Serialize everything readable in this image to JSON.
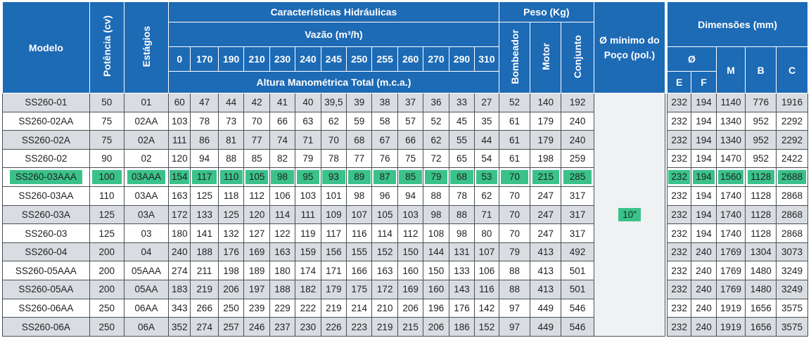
{
  "header": {
    "modelo": "Modelo",
    "potencia": "Potência (cv)",
    "estagios": "Estágios",
    "caracteristicas": "Características Hidráulicas",
    "vazao": "Vazão (m³/h)",
    "altura": "Altura Manométrica Total (m.c.a.)",
    "peso": "Peso (Kg)",
    "bombeador": "Bombeador",
    "motor": "Motor",
    "conjunto": "Conjunto",
    "diametro_poco": "Ø mínimo do Poço (pol.)",
    "dimensoes": "Dimensões (mm)",
    "dia": "Ø",
    "e": "E",
    "f": "F",
    "m": "M",
    "b": "B",
    "c": "C"
  },
  "flows": [
    "0",
    "170",
    "190",
    "210",
    "230",
    "240",
    "245",
    "250",
    "255",
    "260",
    "270",
    "290",
    "310"
  ],
  "poco_min": "10”",
  "highlight_row": 4,
  "rows": [
    {
      "modelo": "SS260-01",
      "potencia": "50",
      "estagios": "01",
      "heads": [
        "60",
        "47",
        "44",
        "42",
        "41",
        "40",
        "39,5",
        "39",
        "38",
        "37",
        "36",
        "33",
        "27"
      ],
      "bombeador": "52",
      "motor": "140",
      "conjunto": "192",
      "e": "232",
      "f": "194",
      "m": "1140",
      "b": "776",
      "c": "1916"
    },
    {
      "modelo": "SS260-02AA",
      "potencia": "75",
      "estagios": "02AA",
      "heads": [
        "103",
        "78",
        "73",
        "70",
        "66",
        "63",
        "62",
        "59",
        "58",
        "57",
        "52",
        "45",
        "35"
      ],
      "bombeador": "61",
      "motor": "179",
      "conjunto": "240",
      "e": "232",
      "f": "194",
      "m": "1340",
      "b": "952",
      "c": "2292"
    },
    {
      "modelo": "SS260-02A",
      "potencia": "75",
      "estagios": "02A",
      "heads": [
        "111",
        "86",
        "81",
        "77",
        "74",
        "71",
        "70",
        "68",
        "67",
        "66",
        "62",
        "55",
        "44"
      ],
      "bombeador": "61",
      "motor": "179",
      "conjunto": "240",
      "e": "232",
      "f": "194",
      "m": "1340",
      "b": "952",
      "c": "2292"
    },
    {
      "modelo": "SS260-02",
      "potencia": "90",
      "estagios": "02",
      "heads": [
        "120",
        "94",
        "88",
        "85",
        "82",
        "79",
        "78",
        "77",
        "76",
        "75",
        "72",
        "65",
        "54"
      ],
      "bombeador": "61",
      "motor": "198",
      "conjunto": "259",
      "e": "232",
      "f": "194",
      "m": "1470",
      "b": "952",
      "c": "2422"
    },
    {
      "modelo": "SS260-03AAA",
      "potencia": "100",
      "estagios": "03AAA",
      "heads": [
        "154",
        "117",
        "110",
        "105",
        "98",
        "95",
        "93",
        "89",
        "87",
        "85",
        "79",
        "68",
        "53"
      ],
      "bombeador": "70",
      "motor": "215",
      "conjunto": "285",
      "e": "232",
      "f": "194",
      "m": "1560",
      "b": "1128",
      "c": "2688"
    },
    {
      "modelo": "SS260-03AA",
      "potencia": "110",
      "estagios": "03AA",
      "heads": [
        "163",
        "125",
        "118",
        "112",
        "106",
        "103",
        "101",
        "98",
        "96",
        "94",
        "88",
        "78",
        "62"
      ],
      "bombeador": "70",
      "motor": "247",
      "conjunto": "317",
      "e": "232",
      "f": "194",
      "m": "1740",
      "b": "1128",
      "c": "2868"
    },
    {
      "modelo": "SS260-03A",
      "potencia": "125",
      "estagios": "03A",
      "heads": [
        "172",
        "133",
        "125",
        "120",
        "114",
        "111",
        "109",
        "107",
        "105",
        "103",
        "98",
        "88",
        "71"
      ],
      "bombeador": "70",
      "motor": "247",
      "conjunto": "317",
      "e": "232",
      "f": "194",
      "m": "1740",
      "b": "1128",
      "c": "2868"
    },
    {
      "modelo": "SS260-03",
      "potencia": "125",
      "estagios": "03",
      "heads": [
        "180",
        "141",
        "132",
        "127",
        "122",
        "119",
        "117",
        "116",
        "114",
        "112",
        "108",
        "98",
        "80"
      ],
      "bombeador": "70",
      "motor": "247",
      "conjunto": "317",
      "e": "232",
      "f": "194",
      "m": "1740",
      "b": "1128",
      "c": "2868"
    },
    {
      "modelo": "SS260-04",
      "potencia": "200",
      "estagios": "04",
      "heads": [
        "240",
        "188",
        "176",
        "169",
        "163",
        "159",
        "156",
        "155",
        "152",
        "150",
        "144",
        "131",
        "107"
      ],
      "bombeador": "79",
      "motor": "413",
      "conjunto": "492",
      "e": "232",
      "f": "240",
      "m": "1769",
      "b": "1304",
      "c": "3073"
    },
    {
      "modelo": "SS260-05AAA",
      "potencia": "200",
      "estagios": "05AAA",
      "heads": [
        "274",
        "211",
        "198",
        "189",
        "180",
        "174",
        "171",
        "166",
        "163",
        "160",
        "150",
        "133",
        "106"
      ],
      "bombeador": "88",
      "motor": "413",
      "conjunto": "501",
      "e": "232",
      "f": "240",
      "m": "1769",
      "b": "1480",
      "c": "3249"
    },
    {
      "modelo": "SS260-05AA",
      "potencia": "200",
      "estagios": "05AA",
      "heads": [
        "183",
        "219",
        "206",
        "197",
        "188",
        "182",
        "179",
        "175",
        "172",
        "169",
        "160",
        "143",
        "116"
      ],
      "bombeador": "88",
      "motor": "413",
      "conjunto": "501",
      "e": "232",
      "f": "240",
      "m": "1769",
      "b": "1480",
      "c": "3249"
    },
    {
      "modelo": "SS260-06AA",
      "potencia": "250",
      "estagios": "06AA",
      "heads": [
        "343",
        "266",
        "250",
        "239",
        "229",
        "222",
        "219",
        "214",
        "210",
        "206",
        "196",
        "176",
        "142"
      ],
      "bombeador": "97",
      "motor": "449",
      "conjunto": "546",
      "e": "232",
      "f": "240",
      "m": "1919",
      "b": "1656",
      "c": "3575"
    },
    {
      "modelo": "SS260-06A",
      "potencia": "250",
      "estagios": "06A",
      "heads": [
        "352",
        "274",
        "257",
        "246",
        "237",
        "230",
        "226",
        "223",
        "219",
        "215",
        "206",
        "186",
        "152"
      ],
      "bombeador": "97",
      "motor": "449",
      "conjunto": "546",
      "e": "232",
      "f": "240",
      "m": "1919",
      "b": "1656",
      "c": "3575"
    }
  ]
}
